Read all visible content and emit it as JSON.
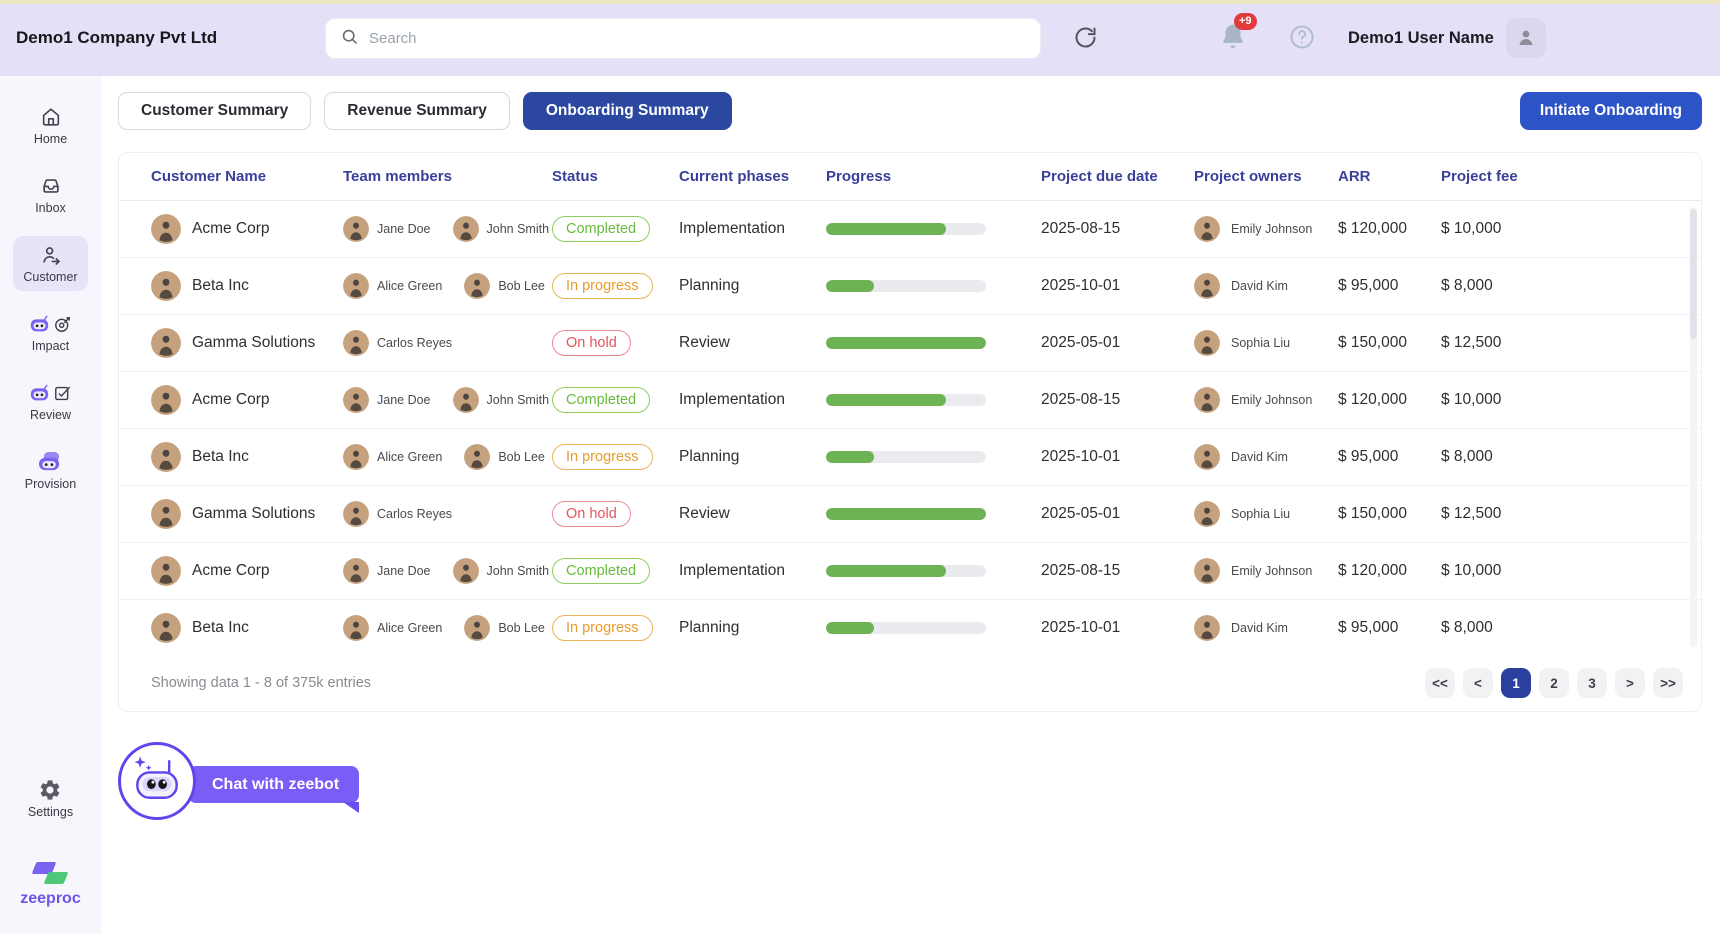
{
  "header": {
    "company_name": "Demo1 Company Pvt Ltd",
    "search_placeholder": "Search",
    "notification_count": "+9",
    "user_name": "Demo1 User Name"
  },
  "sidebar": {
    "items": [
      {
        "label": "Home",
        "icon": "home-icon",
        "active": false
      },
      {
        "label": "Inbox",
        "icon": "inbox-icon",
        "active": false
      },
      {
        "label": "Customer",
        "icon": "customer-icon",
        "active": true
      },
      {
        "label": "Impact",
        "icon": "impact-icon",
        "active": false
      },
      {
        "label": "Review",
        "icon": "review-icon",
        "active": false
      },
      {
        "label": "Provision",
        "icon": "provision-icon",
        "active": false
      }
    ],
    "settings_label": "Settings",
    "logo_text": "zeeproc"
  },
  "tabs": [
    {
      "label": "Customer Summary",
      "active": false
    },
    {
      "label": "Revenue Summary",
      "active": false
    },
    {
      "label": "Onboarding Summary",
      "active": true
    }
  ],
  "initiate_button_label": "Initiate Onboarding",
  "table": {
    "columns": [
      "Customer Name",
      "Team members",
      "Status",
      "Current phases",
      "Progress",
      "Project due date",
      "Project owners",
      "ARR",
      "Project fee"
    ],
    "rows": [
      {
        "customer": "Acme Corp",
        "team_members": [
          "Jane Doe",
          "John Smith"
        ],
        "status": "Completed",
        "status_type": "completed",
        "phase": "Implementation",
        "progress_percent": 75,
        "due_date": "2025-08-15",
        "owner": "Emily Johnson",
        "arr": "$ 120,000",
        "fee": "$ 10,000"
      },
      {
        "customer": "Beta Inc",
        "team_members": [
          "Alice Green",
          "Bob Lee"
        ],
        "status": "In progress",
        "status_type": "in_progress",
        "phase": "Planning",
        "progress_percent": 30,
        "due_date": "2025-10-01",
        "owner": "David Kim",
        "arr": "$ 95,000",
        "fee": "$ 8,000"
      },
      {
        "customer": "Gamma Solutions",
        "team_members": [
          "Carlos Reyes"
        ],
        "status": "On hold",
        "status_type": "on_hold",
        "phase": "Review",
        "progress_percent": 100,
        "due_date": "2025-05-01",
        "owner": "Sophia Liu",
        "arr": "$ 150,000",
        "fee": "$ 12,500"
      },
      {
        "customer": "Acme Corp",
        "team_members": [
          "Jane Doe",
          "John Smith"
        ],
        "status": "Completed",
        "status_type": "completed",
        "phase": "Implementation",
        "progress_percent": 75,
        "due_date": "2025-08-15",
        "owner": "Emily Johnson",
        "arr": "$ 120,000",
        "fee": "$ 10,000"
      },
      {
        "customer": "Beta Inc",
        "team_members": [
          "Alice Green",
          "Bob Lee"
        ],
        "status": "In progress",
        "status_type": "in_progress",
        "phase": "Planning",
        "progress_percent": 30,
        "due_date": "2025-10-01",
        "owner": "David Kim",
        "arr": "$ 95,000",
        "fee": "$ 8,000"
      },
      {
        "customer": "Gamma Solutions",
        "team_members": [
          "Carlos Reyes"
        ],
        "status": "On hold",
        "status_type": "on_hold",
        "phase": "Review",
        "progress_percent": 100,
        "due_date": "2025-05-01",
        "owner": "Sophia Liu",
        "arr": "$ 150,000",
        "fee": "$ 12,500"
      },
      {
        "customer": "Acme Corp",
        "team_members": [
          "Jane Doe",
          "John Smith"
        ],
        "status": "Completed",
        "status_type": "completed",
        "phase": "Implementation",
        "progress_percent": 75,
        "due_date": "2025-08-15",
        "owner": "Emily Johnson",
        "arr": "$ 120,000",
        "fee": "$ 10,000"
      },
      {
        "customer": "Beta Inc",
        "team_members": [
          "Alice Green",
          "Bob Lee"
        ],
        "status": "In progress",
        "status_type": "in_progress",
        "phase": "Planning",
        "progress_percent": 30,
        "due_date": "2025-10-01",
        "owner": "David Kim",
        "arr": "$ 95,000",
        "fee": "$ 8,000"
      }
    ]
  },
  "pagination": {
    "summary": "Showing data 1 - 8 of 375k entries",
    "buttons": [
      "<<",
      "<",
      "1",
      "2",
      "3",
      ">",
      ">>"
    ],
    "active_page": "1"
  },
  "chatbot": {
    "label": "Chat with zeebot"
  },
  "colors": {
    "header_bg": "#e4e0f7",
    "sidebar_bg": "#f7f6fd",
    "active_tab": "#2b479f",
    "primary_button": "#2d54c6",
    "brand_purple": "#7b61f0",
    "brand_green": "#4fc878",
    "progress_green": "#6db356",
    "status_completed": "#67bb3d",
    "status_in_progress": "#e79b2e",
    "status_on_hold": "#e2555f",
    "badge_red": "#e23b3b"
  }
}
